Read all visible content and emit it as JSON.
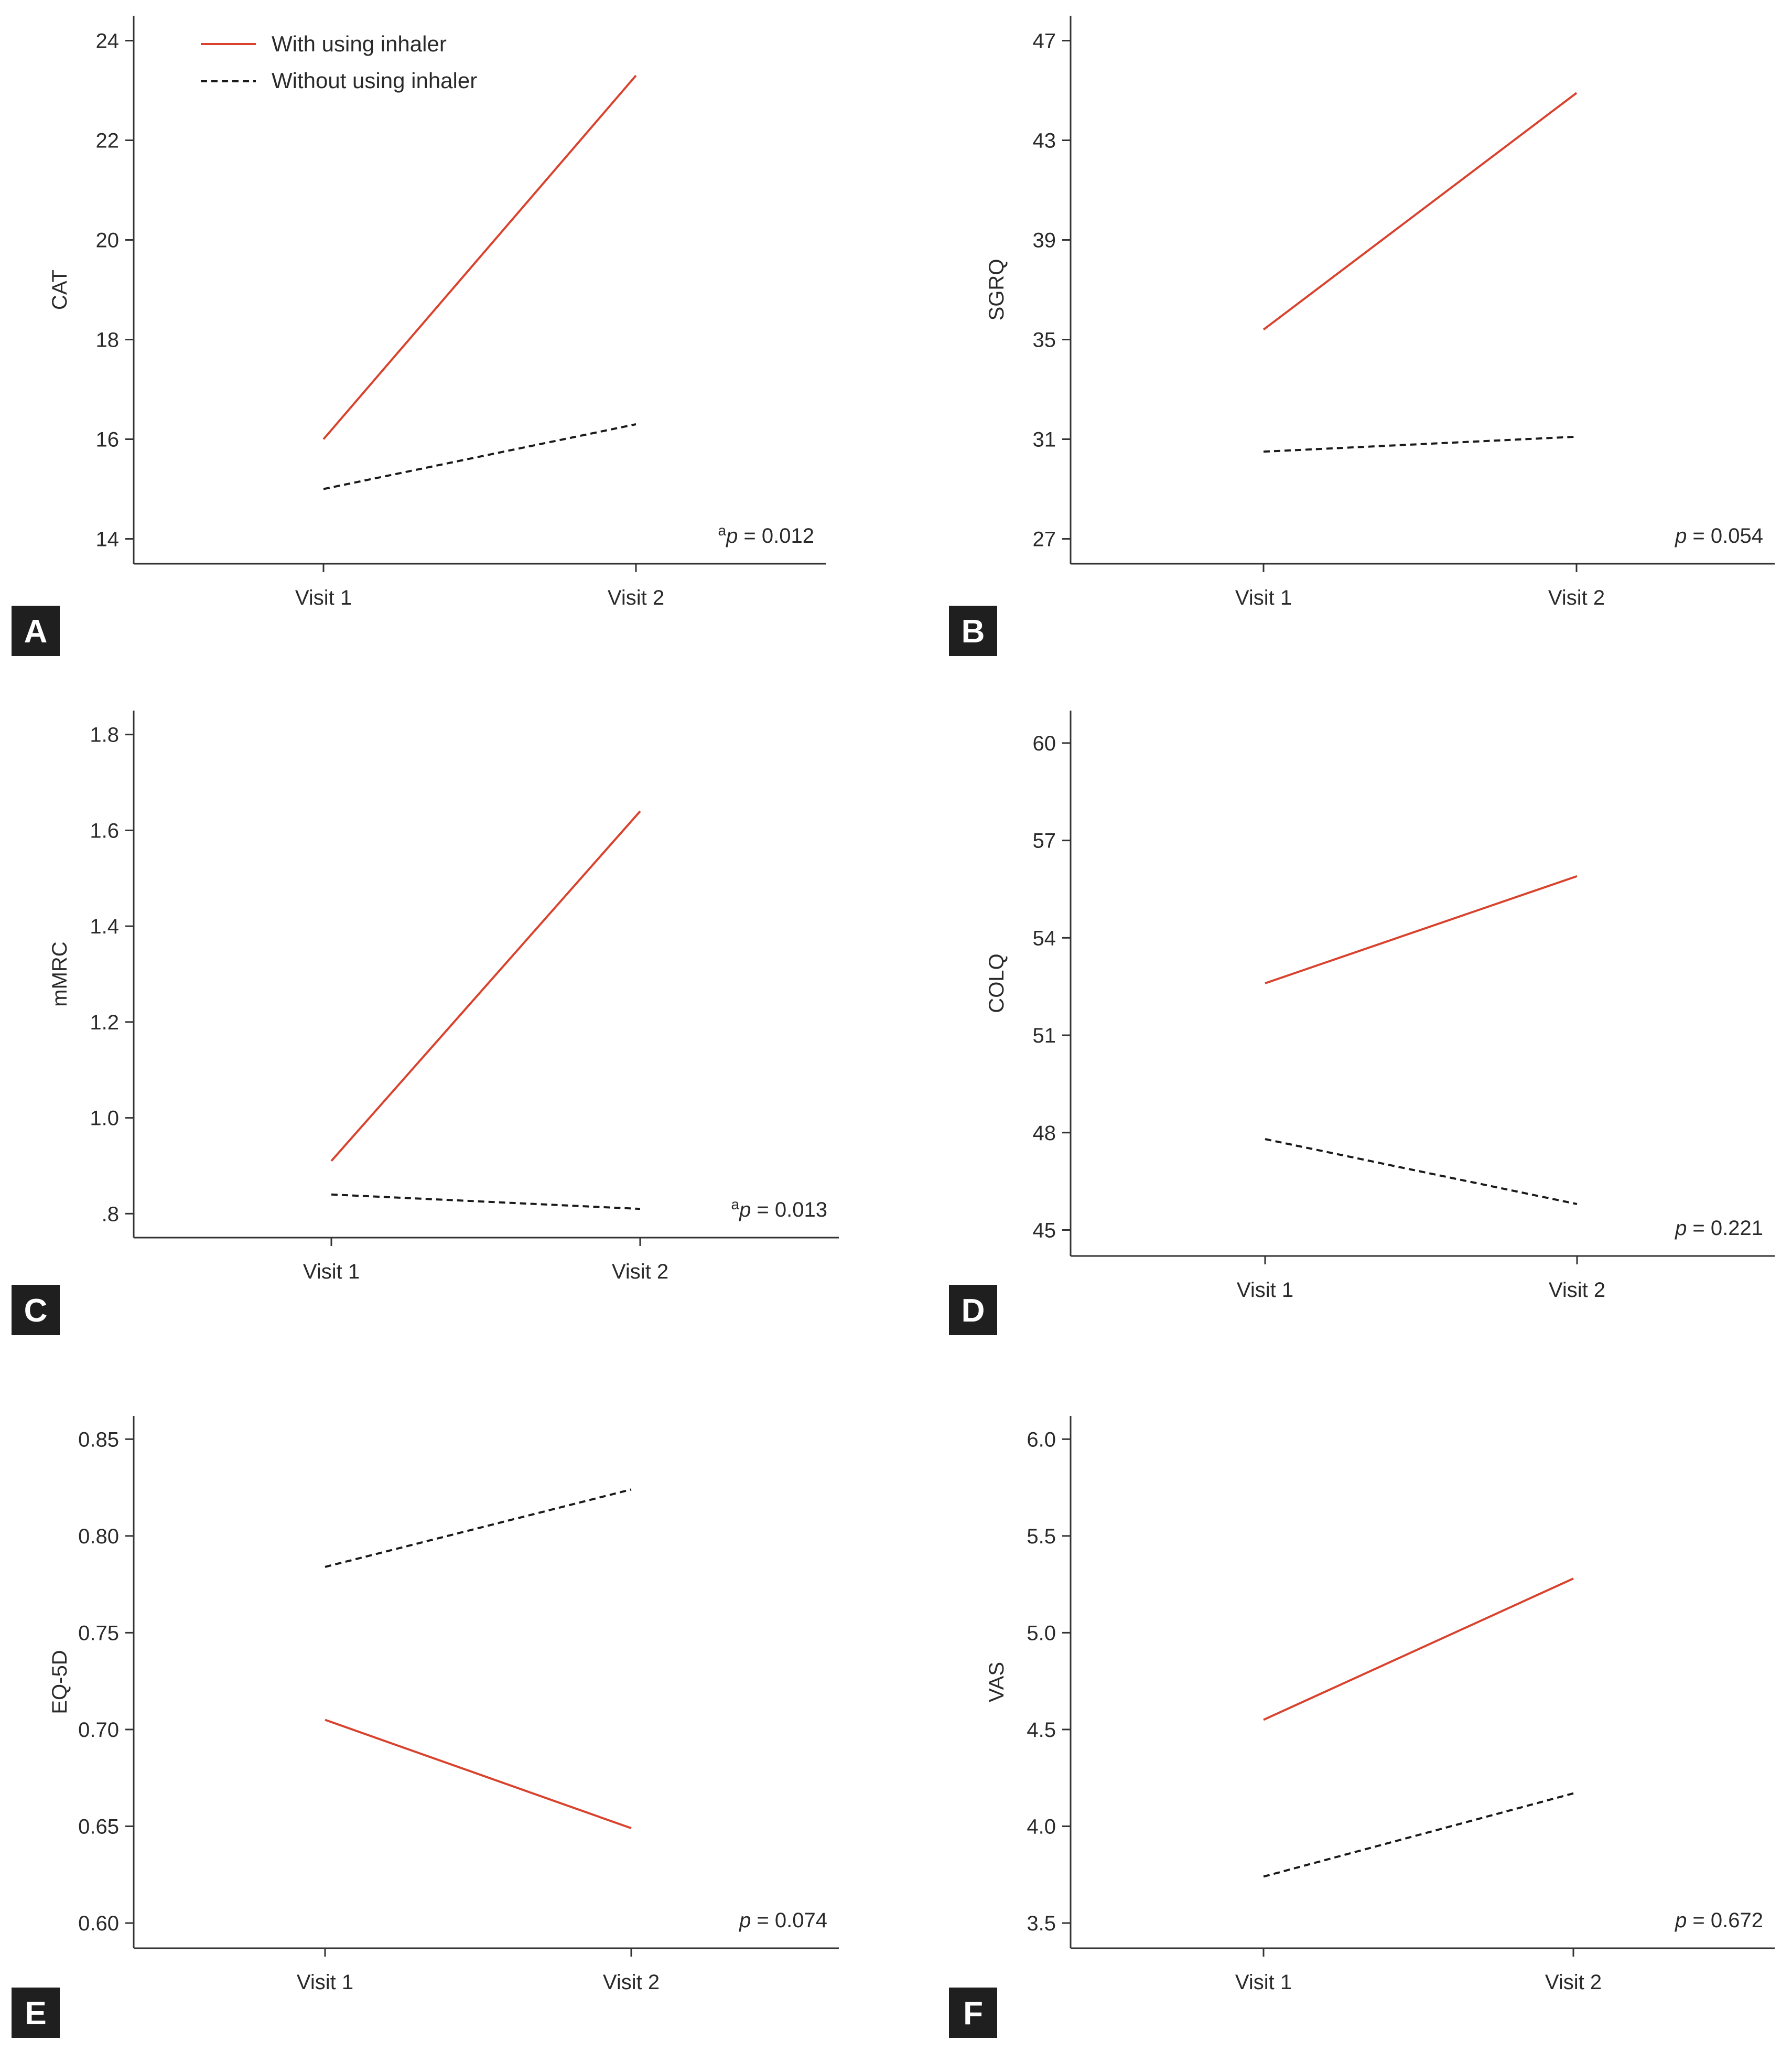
{
  "legend": {
    "with_label": "With using inhaler",
    "without_label": "Without using inhaler"
  },
  "colors": {
    "with": "#d9432e",
    "without": "#1a1a1a",
    "axis": "#333333",
    "badge": "#1f1f1f"
  },
  "chart_data": [
    {
      "panel": "A",
      "type": "line",
      "ylabel": "CAT",
      "categories": [
        "Visit 1",
        "Visit 2"
      ],
      "ylim": [
        13.5,
        24.5
      ],
      "ticks": [
        14,
        16,
        18,
        20,
        22,
        24
      ],
      "tick_labels": [
        "14",
        "16",
        "18",
        "20",
        "22",
        "24"
      ],
      "series": [
        {
          "name": "With using inhaler",
          "values": [
            16.0,
            23.3
          ]
        },
        {
          "name": "Without using inhaler",
          "values": [
            15.0,
            16.3
          ]
        }
      ],
      "p_prefix": "a",
      "p_value": "= 0.012"
    },
    {
      "panel": "B",
      "type": "line",
      "ylabel": "SGRQ",
      "categories": [
        "Visit 1",
        "Visit 2"
      ],
      "ylim": [
        26.0,
        48.0
      ],
      "ticks": [
        27,
        31,
        35,
        39,
        43,
        47
      ],
      "tick_labels": [
        "27",
        "31",
        "35",
        "39",
        "43",
        "47"
      ],
      "series": [
        {
          "name": "With using inhaler",
          "values": [
            35.4,
            44.9
          ]
        },
        {
          "name": "Without using inhaler",
          "values": [
            30.5,
            31.1
          ]
        }
      ],
      "p_prefix": "",
      "p_value": "= 0.054"
    },
    {
      "panel": "C",
      "type": "line",
      "ylabel": "mMRC",
      "categories": [
        "Visit 1",
        "Visit 2"
      ],
      "ylim": [
        0.75,
        1.85
      ],
      "ticks": [
        0.8,
        1.0,
        1.2,
        1.4,
        1.6,
        1.8
      ],
      "tick_labels": [
        ".8",
        "1.0",
        "1.2",
        "1.4",
        "1.6",
        "1.8"
      ],
      "series": [
        {
          "name": "With using inhaler",
          "values": [
            0.91,
            1.64
          ]
        },
        {
          "name": "Without using inhaler",
          "values": [
            0.84,
            0.81
          ]
        }
      ],
      "p_prefix": "a",
      "p_value": "= 0.013"
    },
    {
      "panel": "D",
      "type": "line",
      "ylabel": "COLQ",
      "categories": [
        "Visit 1",
        "Visit 2"
      ],
      "ylim": [
        44.2,
        61.0
      ],
      "ticks": [
        45,
        48,
        51,
        54,
        57,
        60
      ],
      "tick_labels": [
        "45",
        "48",
        "51",
        "54",
        "57",
        "60"
      ],
      "series": [
        {
          "name": "With using inhaler",
          "values": [
            52.6,
            55.9
          ]
        },
        {
          "name": "Without using inhaler",
          "values": [
            47.8,
            45.8
          ]
        }
      ],
      "p_prefix": "",
      "p_value": "= 0.221"
    },
    {
      "panel": "E",
      "type": "line",
      "ylabel": "EQ-5D",
      "categories": [
        "Visit 1",
        "Visit 2"
      ],
      "ylim": [
        0.587,
        0.862
      ],
      "ticks": [
        0.6,
        0.65,
        0.7,
        0.75,
        0.8,
        0.85
      ],
      "tick_labels": [
        "0.60",
        "0.65",
        "0.70",
        "0.75",
        "0.80",
        "0.85"
      ],
      "series": [
        {
          "name": "With using inhaler",
          "values": [
            0.705,
            0.649
          ]
        },
        {
          "name": "Without using inhaler",
          "values": [
            0.784,
            0.824
          ]
        }
      ],
      "p_prefix": "",
      "p_value": "= 0.074"
    },
    {
      "panel": "F",
      "type": "line",
      "ylabel": "VAS",
      "categories": [
        "Visit 1",
        "Visit 2"
      ],
      "ylim": [
        3.37,
        6.12
      ],
      "ticks": [
        3.5,
        4.0,
        4.5,
        5.0,
        5.5,
        6.0
      ],
      "tick_labels": [
        "3.5",
        "4.0",
        "4.5",
        "5.0",
        "5.5",
        "6.0"
      ],
      "series": [
        {
          "name": "With using inhaler",
          "values": [
            4.55,
            5.28
          ]
        },
        {
          "name": "Without using inhaler",
          "values": [
            3.74,
            4.17
          ]
        }
      ],
      "p_prefix": "",
      "p_value": "= 0.672"
    }
  ]
}
